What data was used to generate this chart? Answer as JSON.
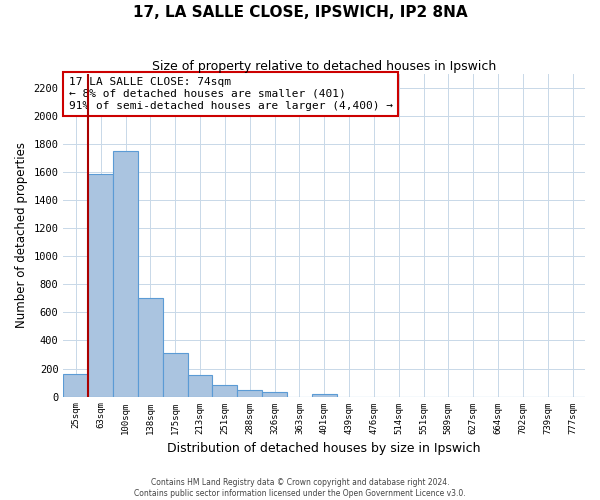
{
  "title": "17, LA SALLE CLOSE, IPSWICH, IP2 8NA",
  "subtitle": "Size of property relative to detached houses in Ipswich",
  "xlabel": "Distribution of detached houses by size in Ipswich",
  "ylabel": "Number of detached properties",
  "bar_labels": [
    "25sqm",
    "63sqm",
    "100sqm",
    "138sqm",
    "175sqm",
    "213sqm",
    "251sqm",
    "288sqm",
    "326sqm",
    "363sqm",
    "401sqm",
    "439sqm",
    "476sqm",
    "514sqm",
    "551sqm",
    "589sqm",
    "627sqm",
    "664sqm",
    "702sqm",
    "739sqm",
    "777sqm"
  ],
  "bar_values": [
    160,
    1590,
    1750,
    700,
    310,
    155,
    85,
    50,
    30,
    0,
    20,
    0,
    0,
    0,
    0,
    0,
    0,
    0,
    0,
    0,
    0
  ],
  "bar_color": "#aac4e0",
  "bar_edge_color": "#5b9bd5",
  "vline_color": "#aa0000",
  "annotation_title": "17 LA SALLE CLOSE: 74sqm",
  "annotation_line1": "← 8% of detached houses are smaller (401)",
  "annotation_line2": "91% of semi-detached houses are larger (4,400) →",
  "annotation_box_edge": "#cc0000",
  "ylim": [
    0,
    2300
  ],
  "yticks": [
    0,
    200,
    400,
    600,
    800,
    1000,
    1200,
    1400,
    1600,
    1800,
    2000,
    2200
  ],
  "footnote1": "Contains HM Land Registry data © Crown copyright and database right 2024.",
  "footnote2": "Contains public sector information licensed under the Open Government Licence v3.0.",
  "background_color": "#ffffff",
  "grid_color": "#c8d8e8"
}
